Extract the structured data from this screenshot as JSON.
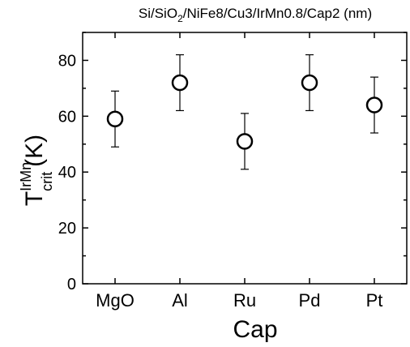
{
  "chart_data": {
    "type": "scatter",
    "title_parts": [
      "Si/SiO",
      "2",
      "/NiFe8/Cu3/IrMn0.8/Cap2 (nm)"
    ],
    "xlabel": "Cap",
    "ylabel_parts": [
      "T",
      "IrMn",
      "crit",
      "(K)"
    ],
    "categories": [
      "MgO",
      "Al",
      "Ru",
      "Pd",
      "Pt"
    ],
    "values": [
      59,
      72,
      51,
      72,
      64
    ],
    "errors": [
      10,
      10,
      10,
      10,
      10
    ],
    "ylim": [
      0,
      90
    ],
    "yticks": [
      0,
      20,
      40,
      60,
      80
    ],
    "grid": false,
    "marker": "open-circle"
  }
}
